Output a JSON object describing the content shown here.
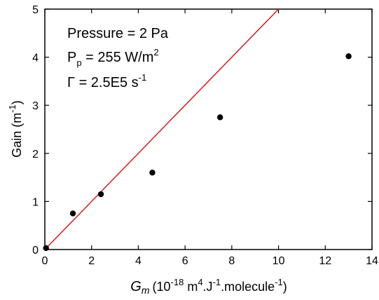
{
  "chart_data": {
    "type": "scatter",
    "x_axis": {
      "label_symbol": "G",
      "label_symbol_subscript": "m",
      "label_units_parts": [
        "(10",
        "-18",
        " m",
        "4",
        ".J",
        "-1",
        ".molecule",
        "-1",
        ")"
      ],
      "range": [
        0,
        14
      ],
      "ticks": [
        0,
        2,
        4,
        6,
        8,
        10,
        12,
        14
      ]
    },
    "y_axis": {
      "label_parts": [
        "Gain (m",
        "-1",
        ")"
      ],
      "range": [
        0,
        5
      ],
      "ticks": [
        0,
        1,
        2,
        3,
        4,
        5
      ]
    },
    "points": [
      {
        "x": 0.05,
        "y": 0.03
      },
      {
        "x": 1.2,
        "y": 0.75
      },
      {
        "x": 2.4,
        "y": 1.15
      },
      {
        "x": 4.6,
        "y": 1.6
      },
      {
        "x": 7.5,
        "y": 2.75
      },
      {
        "x": 13.0,
        "y": 4.02
      }
    ],
    "fit_line": {
      "color": "#cc2222",
      "slope": 0.5,
      "intercept": 0
    },
    "annotations": {
      "pressure": "Pressure = 2 Pa",
      "pp_symbol": "P",
      "pp_sub": "p",
      "pp_text": " = 255 W/m",
      "pp_sup": "2",
      "gamma_text": "Γ = 2.5E5 s",
      "gamma_sup": "-1"
    },
    "grid": false,
    "point_color": "#000000"
  }
}
